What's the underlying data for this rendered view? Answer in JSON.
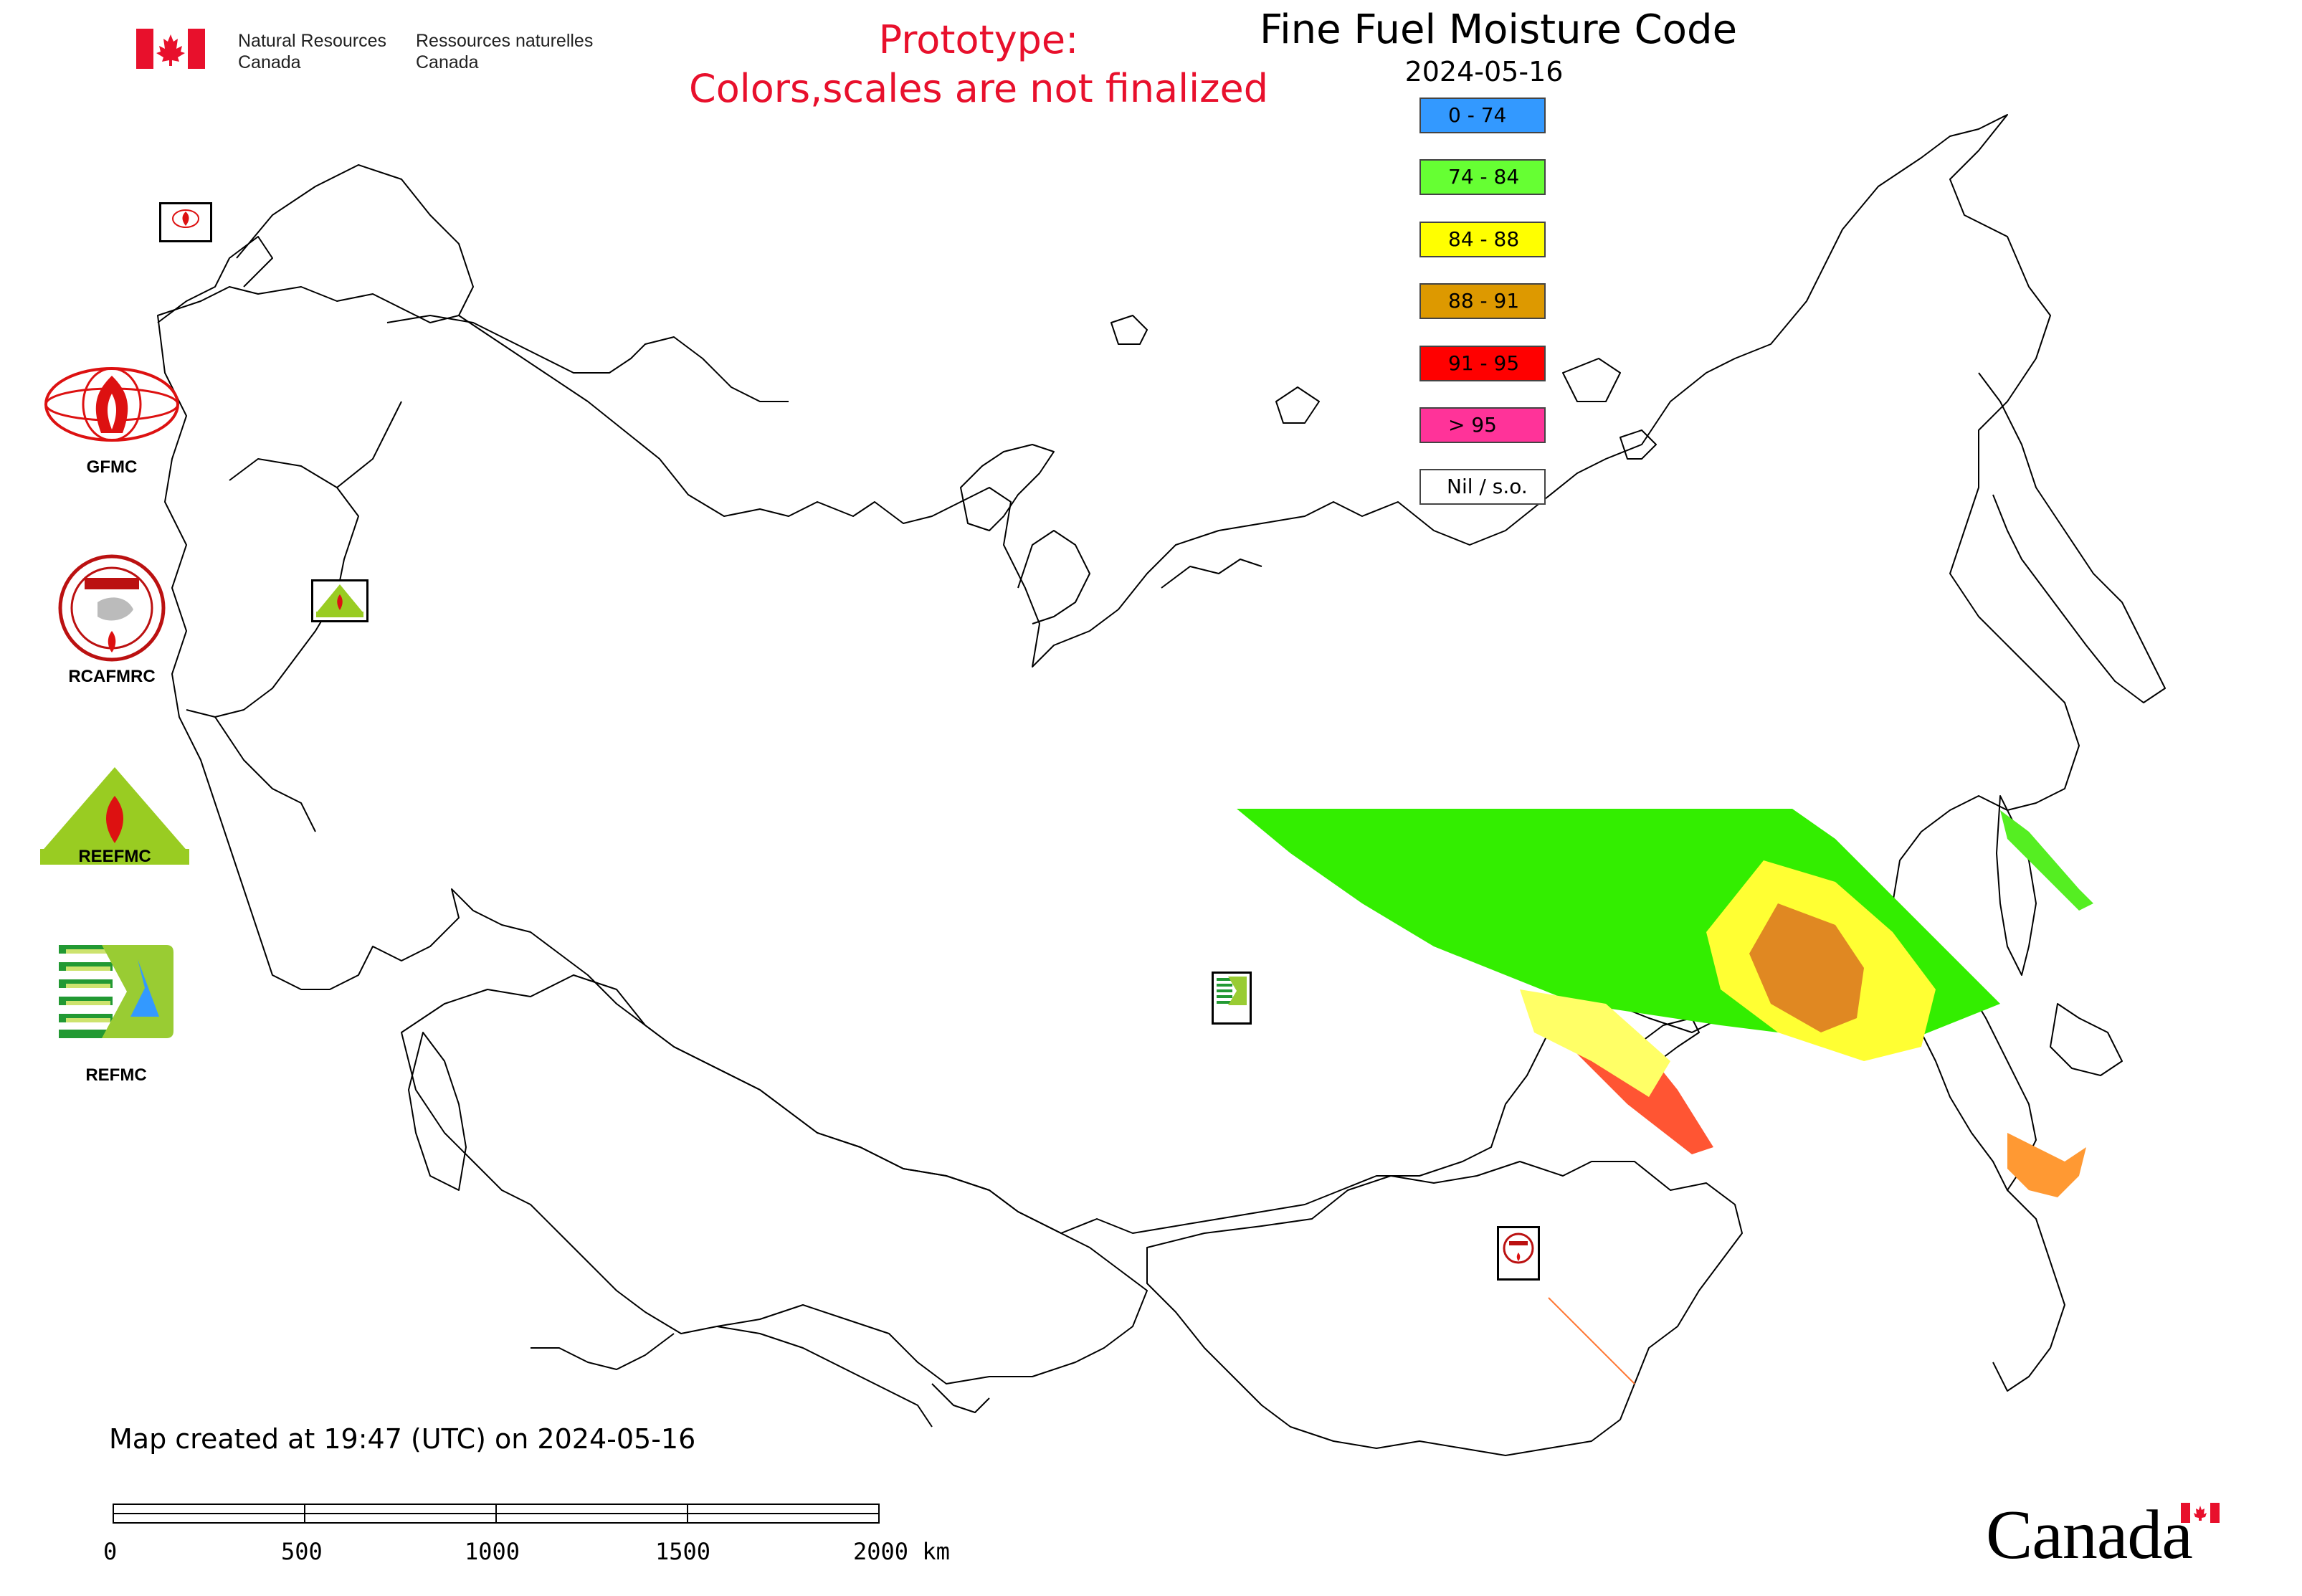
{
  "header": {
    "agency_en_line1": "Natural Resources",
    "agency_en_line2": "Canada",
    "agency_fr_line1": "Ressources naturelles",
    "agency_fr_line2": "Canada",
    "prototype_line1": "Prototype:",
    "prototype_line2": "Colors,scales are not finalized",
    "title": "Fine Fuel Moisture Code",
    "date": "2024-05-16"
  },
  "legend": {
    "items": [
      {
        "label": "0 - 74",
        "color": "#3399ff"
      },
      {
        "label": "74 - 84",
        "color": "#66ff33"
      },
      {
        "label": "84 - 88",
        "color": "#ffff00"
      },
      {
        "label": "88 - 91",
        "color": "#dd9900"
      },
      {
        "label": "91 - 95",
        "color": "#ff0000"
      },
      {
        "label": "> 95",
        "color": "#ff3399"
      },
      {
        "label": "Nil / s.o.",
        "color": "#ffffff"
      }
    ]
  },
  "agencies": {
    "gfmc": "GFMC",
    "rcafmrc": "RCAFMRC",
    "reefmc_text": "REEFMC",
    "refmc": "REFMC",
    "rcafmrc_badge": "RCAFMRC"
  },
  "map_markers": [
    {
      "name": "GFMC",
      "icon": "gfmc-icon"
    },
    {
      "name": "REEFMC",
      "icon": "reefmc-icon"
    },
    {
      "name": "REFMC",
      "icon": "refmc-icon"
    },
    {
      "name": "RCAFMRC",
      "icon": "rcafmrc-icon"
    }
  ],
  "footer": {
    "created": "Map created at 19:47 (UTC) on 2024-05-16",
    "scale_ticks": [
      "0",
      "500",
      "1000",
      "1500",
      "2000 km"
    ],
    "wordmark": "Canada"
  }
}
